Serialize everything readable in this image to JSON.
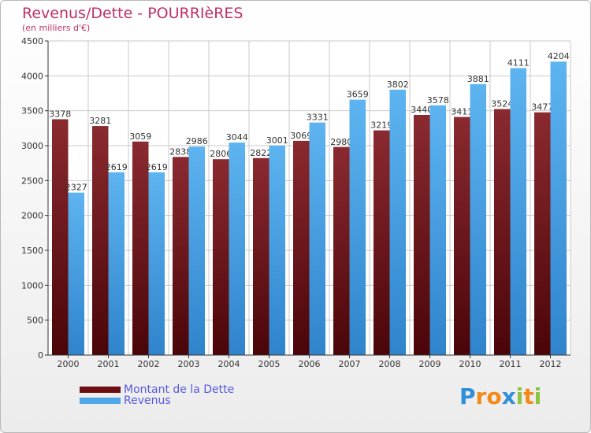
{
  "title": "Revenus/Dette - POURRIèRES",
  "subtitle": "(en milliers d'€)",
  "legend": [
    {
      "label": "Montant de la Dette",
      "color": "#6b0f14"
    },
    {
      "label": "Revenus",
      "color": "#4ea6e8"
    }
  ],
  "logo": {
    "text": "Proxiti",
    "letters": [
      {
        "ch": "P",
        "color": "#2f8fd8"
      },
      {
        "ch": "r",
        "color": "#f28a1a"
      },
      {
        "ch": "o",
        "color": "#f28a1a"
      },
      {
        "ch": "x",
        "color": "#2f8fd8"
      },
      {
        "ch": "i",
        "color": "#8cc43f"
      },
      {
        "ch": "t",
        "color": "#f28a1a"
      },
      {
        "ch": "i",
        "color": "#8cc43f"
      }
    ]
  },
  "colors": {
    "title": "#c0306a",
    "grid": "#c9c9c9",
    "axis": "#333333"
  },
  "chart_data": {
    "type": "bar",
    "title": "Revenus/Dette - POURRIèRES",
    "ylabel": "(en milliers d'€)",
    "categories": [
      "2000",
      "2001",
      "2002",
      "2003",
      "2004",
      "2005",
      "2006",
      "2007",
      "2008",
      "2009",
      "2010",
      "2011",
      "2012"
    ],
    "series": [
      {
        "name": "Montant de la Dette",
        "color": "#6b0f14",
        "values": [
          3378,
          3281,
          3059,
          2838,
          2806,
          2822,
          3069,
          2980,
          3219,
          3440,
          3411,
          3524,
          3477
        ]
      },
      {
        "name": "Revenus",
        "color": "#4ea6e8",
        "values": [
          2327,
          2619,
          2619,
          2986,
          3044,
          3001,
          3331,
          3659,
          3802,
          3578,
          3881,
          4111,
          4204
        ]
      }
    ],
    "ylim": [
      0,
      4500
    ],
    "yticks": [
      0,
      500,
      1000,
      1500,
      2000,
      2500,
      3000,
      3500,
      4000,
      4500
    ],
    "grid": true,
    "legend_position": "bottom-left"
  }
}
